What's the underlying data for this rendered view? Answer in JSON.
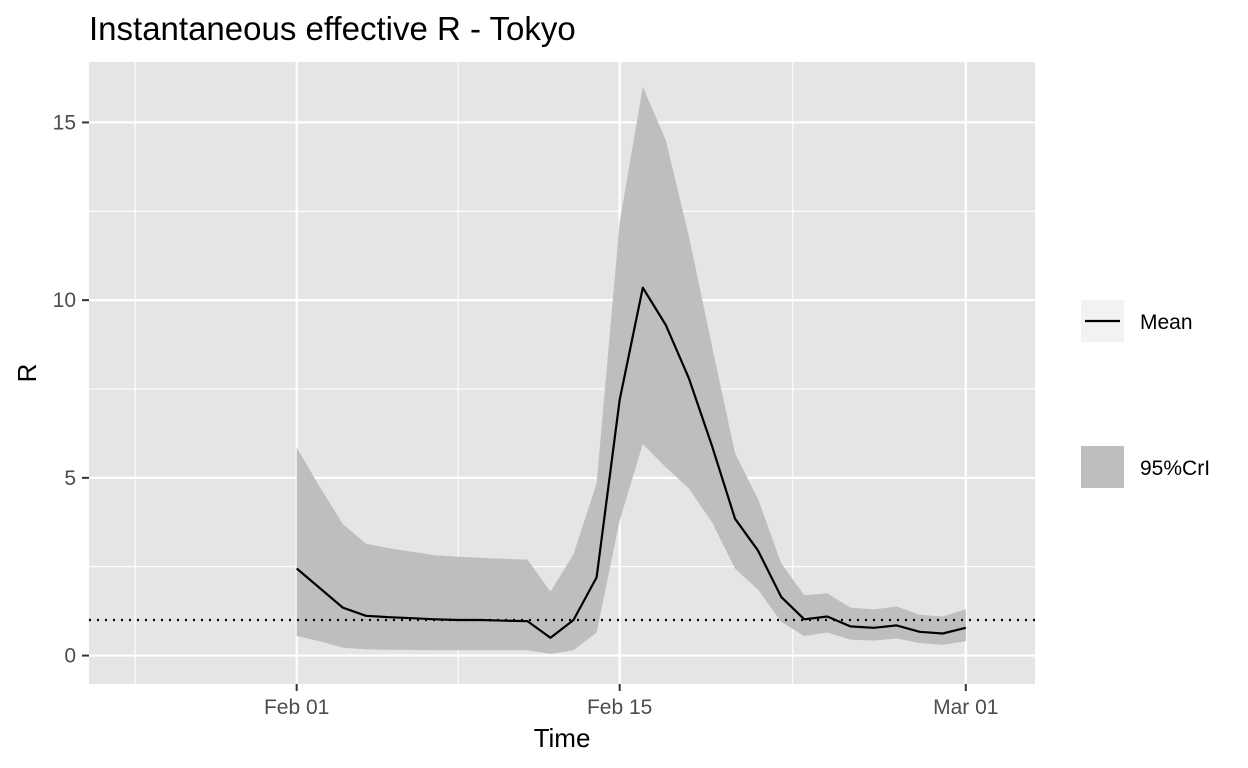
{
  "chart_data": {
    "type": "line",
    "title": "Instantaneous effective R -  Tokyo",
    "xlabel": "Time",
    "ylabel": "R",
    "x_ticks": [
      {
        "label": "Feb 01",
        "day": 1
      },
      {
        "label": "Feb 15",
        "day": 15
      },
      {
        "label": "Mar 01",
        "day": 30
      }
    ],
    "y_ticks": [
      0,
      5,
      10,
      15
    ],
    "xlim": [
      "2020-01-23",
      "2020-03-04"
    ],
    "ylim": [
      -0.8,
      16.7
    ],
    "grid": true,
    "reference_line": {
      "y": 1,
      "style": "dotted"
    },
    "legend": {
      "position": "right",
      "items": [
        {
          "label": "Mean",
          "kind": "line"
        },
        {
          "label": "95%CrI",
          "kind": "ribbon"
        }
      ]
    },
    "x": [
      "2020-02-01",
      "2020-02-02",
      "2020-02-03",
      "2020-02-04",
      "2020-02-05",
      "2020-02-06",
      "2020-02-07",
      "2020-02-08",
      "2020-02-09",
      "2020-02-10",
      "2020-02-11",
      "2020-02-12",
      "2020-02-13",
      "2020-02-14",
      "2020-02-15",
      "2020-02-16",
      "2020-02-17",
      "2020-02-18",
      "2020-02-19",
      "2020-02-20",
      "2020-02-21",
      "2020-02-22",
      "2020-02-23",
      "2020-02-24",
      "2020-02-25",
      "2020-02-26",
      "2020-02-27",
      "2020-02-28",
      "2020-02-29",
      "2020-03-01"
    ],
    "series": [
      {
        "name": "Mean",
        "values": [
          2.45,
          1.9,
          1.35,
          1.12,
          1.08,
          1.05,
          1.02,
          1.0,
          1.0,
          0.98,
          0.97,
          0.5,
          1.0,
          2.2,
          7.2,
          10.35,
          9.3,
          7.8,
          5.9,
          3.85,
          2.95,
          1.65,
          1.02,
          1.1,
          0.82,
          0.78,
          0.85,
          0.67,
          0.62,
          0.78
        ]
      },
      {
        "name": "95%CrI",
        "lower": [
          0.55,
          0.4,
          0.22,
          0.18,
          0.16,
          0.16,
          0.15,
          0.15,
          0.15,
          0.15,
          0.15,
          0.05,
          0.15,
          0.65,
          3.8,
          5.95,
          5.3,
          4.7,
          3.75,
          2.45,
          1.85,
          0.95,
          0.55,
          0.65,
          0.45,
          0.42,
          0.48,
          0.35,
          0.3,
          0.4
        ],
        "upper": [
          5.85,
          4.75,
          3.7,
          3.15,
          3.02,
          2.92,
          2.82,
          2.78,
          2.75,
          2.72,
          2.7,
          1.8,
          2.85,
          4.85,
          12.2,
          16.0,
          14.5,
          11.8,
          8.7,
          5.7,
          4.4,
          2.6,
          1.7,
          1.75,
          1.35,
          1.3,
          1.38,
          1.15,
          1.1,
          1.3
        ]
      }
    ],
    "colors": {
      "panel": "#e5e5e5",
      "grid": "#ffffff",
      "ribbon": "#bebebe",
      "line": "#000000",
      "legend_key": "#f2f2f2",
      "tick_text": "#4d4d4d"
    }
  }
}
